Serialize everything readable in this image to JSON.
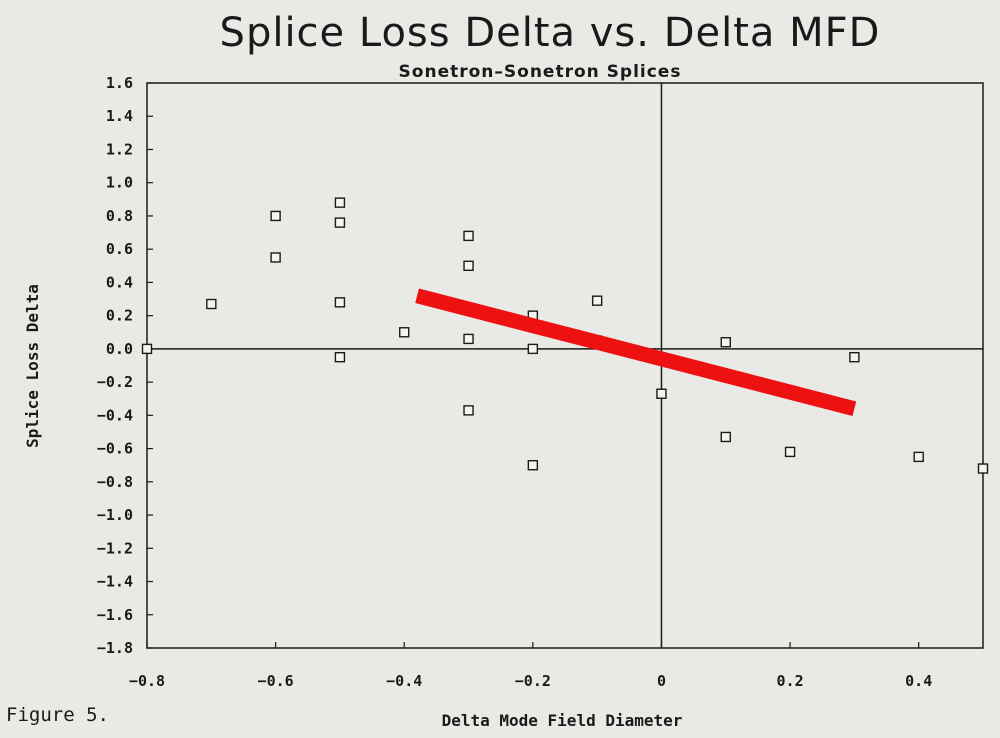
{
  "figure_label": "Figure 5.",
  "chart_data": {
    "type": "scatter",
    "title": "Splice Loss Delta vs. Delta MFD",
    "subtitle": "Sonetron–Sonetron Splices",
    "xlabel": "Delta Mode Field Diameter",
    "ylabel": "Splice Loss Delta",
    "xlim": [
      -0.8,
      0.5
    ],
    "ylim": [
      -1.8,
      1.6
    ],
    "x_ticks": [
      "−0.8",
      "−0.6",
      "−0.4",
      "−0.2",
      "0",
      "0.2",
      "0.4"
    ],
    "y_ticks": [
      "1.6",
      "1.4",
      "1.2",
      "1.0",
      "0.8",
      "0.6",
      "0.4",
      "0.2",
      "0.0",
      "−0.2",
      "−0.4",
      "−0.6",
      "−0.8",
      "−1.0",
      "−1.2",
      "−1.4",
      "−1.6",
      "−1.8"
    ],
    "grid": "zero lines",
    "points": [
      {
        "x": -0.8,
        "y": 0.0
      },
      {
        "x": -0.7,
        "y": 0.27
      },
      {
        "x": -0.6,
        "y": 0.8
      },
      {
        "x": -0.6,
        "y": 0.55
      },
      {
        "x": -0.5,
        "y": 0.88
      },
      {
        "x": -0.5,
        "y": 0.76
      },
      {
        "x": -0.5,
        "y": 0.28
      },
      {
        "x": -0.5,
        "y": -0.05
      },
      {
        "x": -0.4,
        "y": 0.1
      },
      {
        "x": -0.3,
        "y": 0.68
      },
      {
        "x": -0.3,
        "y": 0.5
      },
      {
        "x": -0.3,
        "y": 0.06
      },
      {
        "x": -0.3,
        "y": -0.37
      },
      {
        "x": -0.2,
        "y": 0.2
      },
      {
        "x": -0.2,
        "y": 0.0
      },
      {
        "x": -0.2,
        "y": -0.7
      },
      {
        "x": -0.1,
        "y": 0.29
      },
      {
        "x": -0.1,
        "y": 0.05
      },
      {
        "x": 0.0,
        "y": -0.27
      },
      {
        "x": 0.1,
        "y": 0.04
      },
      {
        "x": 0.1,
        "y": -0.53
      },
      {
        "x": 0.2,
        "y": -0.62
      },
      {
        "x": 0.3,
        "y": -0.05
      },
      {
        "x": 0.4,
        "y": -0.65
      },
      {
        "x": 0.5,
        "y": -0.72
      }
    ],
    "trend_line": {
      "x": [
        -0.38,
        0.3
      ],
      "y": [
        0.32,
        -0.36
      ],
      "color": "#ee1111"
    },
    "marker_color": "#1a1a1a"
  }
}
